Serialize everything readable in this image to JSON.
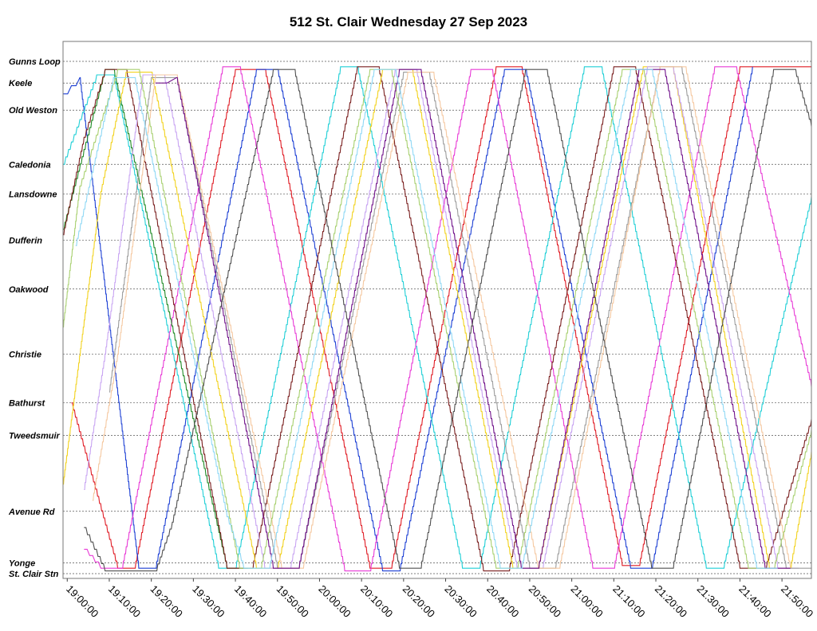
{
  "chart_data": {
    "type": "line",
    "title": "512 St. Clair Wednesday 27 Sep 2023",
    "xlabel": "",
    "ylabel": "",
    "x_range": [
      "18:59:00",
      "21:57:00"
    ],
    "x_ticks": [
      "19:00:00",
      "19:10:00",
      "19:20:00",
      "19:30:00",
      "19:40:00",
      "19:50:00",
      "20:00:00",
      "20:10:00",
      "20:20:00",
      "20:30:00",
      "20:40:00",
      "20:50:00",
      "21:00:00",
      "21:10:00",
      "21:20:00",
      "21:30:00",
      "21:40:00",
      "21:50:00"
    ],
    "stops": [
      {
        "name": "Gunns Loop",
        "dist": 0
      },
      {
        "name": "Keele",
        "dist": 0.4
      },
      {
        "name": "Old Weston",
        "dist": 0.9
      },
      {
        "name": "Caledonia",
        "dist": 1.9
      },
      {
        "name": "Lansdowne",
        "dist": 2.45
      },
      {
        "name": "Dufferin",
        "dist": 3.3
      },
      {
        "name": "Oakwood",
        "dist": 4.2
      },
      {
        "name": "Christie",
        "dist": 5.4
      },
      {
        "name": "Bathurst",
        "dist": 6.3
      },
      {
        "name": "Tweedsmuir",
        "dist": 6.9
      },
      {
        "name": "Avenue Rd",
        "dist": 8.3
      },
      {
        "name": "Yonge",
        "dist": 9.25
      },
      {
        "name": "St. Clair Stn",
        "dist": 9.45
      }
    ],
    "grid": true,
    "series": [
      {
        "color": "#e01b24",
        "points": [
          [
            "19:01:00",
            6.3
          ],
          [
            "19:12:00",
            9.35
          ],
          [
            "19:16:00",
            9.35
          ],
          [
            "19:40:00",
            0.15
          ],
          [
            "19:47:00",
            0.15
          ],
          [
            "20:12:00",
            9.35
          ],
          [
            "20:17:00",
            9.35
          ],
          [
            "20:42:00",
            0.1
          ],
          [
            "20:48:00",
            0.1
          ],
          [
            "21:12:00",
            9.3
          ],
          [
            "21:16:00",
            9.3
          ],
          [
            "21:40:00",
            0.1
          ],
          [
            "21:57:00",
            0.1
          ]
        ]
      },
      {
        "color": "#1c3fd4",
        "points": [
          [
            "18:59:00",
            0.6
          ],
          [
            "19:03:00",
            0.3
          ],
          [
            "19:17:00",
            9.35
          ],
          [
            "19:21:00",
            9.35
          ],
          [
            "19:45:00",
            0.15
          ],
          [
            "19:50:00",
            0.15
          ],
          [
            "20:15:00",
            9.4
          ],
          [
            "20:19:00",
            9.4
          ],
          [
            "20:44:00",
            0.15
          ],
          [
            "20:49:00",
            0.15
          ],
          [
            "21:14:00",
            9.35
          ],
          [
            "21:19:00",
            9.35
          ],
          [
            "21:43:00",
            0.1
          ]
        ]
      },
      {
        "color": "#1fcfd6",
        "points": [
          [
            "18:59:00",
            1.9
          ],
          [
            "19:07:00",
            0.25
          ],
          [
            "19:11:00",
            0.25
          ],
          [
            "19:36:00",
            9.35
          ],
          [
            "19:40:00",
            9.35
          ],
          [
            "20:05:00",
            0.1
          ],
          [
            "20:09:00",
            0.1
          ],
          [
            "20:34:00",
            9.35
          ],
          [
            "20:38:00",
            9.35
          ],
          [
            "21:03:00",
            0.1
          ],
          [
            "21:07:00",
            0.1
          ],
          [
            "21:32:00",
            9.35
          ],
          [
            "21:36:00",
            9.35
          ],
          [
            "21:57:00",
            2.5
          ]
        ]
      },
      {
        "color": "#e83ad6",
        "points": [
          [
            "19:04:00",
            9.0
          ],
          [
            "19:08:00",
            9.35
          ],
          [
            "19:13:00",
            9.35
          ],
          [
            "19:37:00",
            0.1
          ],
          [
            "19:41:00",
            0.1
          ],
          [
            "20:06:00",
            9.4
          ],
          [
            "20:12:00",
            9.4
          ],
          [
            "20:36:00",
            0.15
          ],
          [
            "20:41:00",
            0.15
          ],
          [
            "21:05:00",
            9.35
          ],
          [
            "21:10:00",
            9.35
          ],
          [
            "21:34:00",
            0.1
          ],
          [
            "21:39:00",
            0.1
          ],
          [
            "21:57:00",
            6.0
          ]
        ]
      },
      {
        "color": "#1e8a25",
        "points": [
          [
            "18:59:00",
            3.1
          ],
          [
            "19:09:00",
            0.15
          ],
          [
            "19:11:00",
            0.15
          ],
          [
            "19:38:00",
            9.35
          ],
          [
            "19:43:00",
            9.35
          ]
        ]
      },
      {
        "color": "#7a1f1f",
        "points": [
          [
            "18:59:00",
            3.2
          ],
          [
            "19:04:00",
            1.4
          ],
          [
            "19:09:00",
            0.15
          ],
          [
            "19:14:00",
            0.15
          ],
          [
            "19:38:00",
            9.35
          ],
          [
            "19:44:00",
            9.35
          ],
          [
            "20:09:00",
            0.1
          ],
          [
            "20:14:00",
            0.1
          ],
          [
            "20:39:00",
            9.4
          ],
          [
            "20:45:00",
            9.4
          ],
          [
            "21:10:00",
            0.1
          ],
          [
            "21:15:00",
            0.1
          ],
          [
            "21:40:00",
            9.35
          ],
          [
            "21:46:00",
            9.35
          ],
          [
            "21:57:00",
            6.6
          ]
        ]
      },
      {
        "color": "#f2d21d",
        "points": [
          [
            "18:59:00",
            7.8
          ],
          [
            "19:08:00",
            2.4
          ],
          [
            "19:14:00",
            0.2
          ],
          [
            "19:20:00",
            0.2
          ],
          [
            "19:45:00",
            9.35
          ],
          [
            "19:50:00",
            9.35
          ],
          [
            "20:15:00",
            0.15
          ],
          [
            "20:22:00",
            0.15
          ],
          [
            "20:46:00",
            9.35
          ],
          [
            "20:52:00",
            9.35
          ],
          [
            "21:17:00",
            0.1
          ],
          [
            "21:24:00",
            0.1
          ],
          [
            "21:47:00",
            9.35
          ],
          [
            "21:52:00",
            9.35
          ],
          [
            "21:57:00",
            7.2
          ]
        ]
      },
      {
        "color": "#c8a4f2",
        "points": [
          [
            "19:04:00",
            7.9
          ],
          [
            "19:09:00",
            5.4
          ],
          [
            "19:18:00",
            0.25
          ],
          [
            "19:23:00",
            0.25
          ],
          [
            "19:47:00",
            9.35
          ],
          [
            "19:53:00",
            9.35
          ],
          [
            "20:18:00",
            0.15
          ],
          [
            "20:23:00",
            0.15
          ],
          [
            "20:47:00",
            9.35
          ],
          [
            "20:53:00",
            9.35
          ],
          [
            "21:18:00",
            0.1
          ],
          [
            "21:24:00",
            0.1
          ],
          [
            "21:49:00",
            9.35
          ],
          [
            "21:54:00",
            9.35
          ]
        ]
      },
      {
        "color": "#9c9c9c",
        "points": [
          [
            "19:10:00",
            6.1
          ],
          [
            "19:20:00",
            0.3
          ],
          [
            "19:26:00",
            0.3
          ],
          [
            "19:50:00",
            9.35
          ],
          [
            "19:55:00",
            9.35
          ],
          [
            "20:20:00",
            0.2
          ],
          [
            "20:26:00",
            0.2
          ],
          [
            "20:50:00",
            9.35
          ],
          [
            "20:56:00",
            9.35
          ],
          [
            "21:21:00",
            0.1
          ],
          [
            "21:26:00",
            0.1
          ],
          [
            "21:51:00",
            9.35
          ],
          [
            "21:57:00",
            9.35
          ]
        ]
      },
      {
        "color": "#f5c8a0",
        "points": [
          [
            "19:06:00",
            8.1
          ],
          [
            "19:12:00",
            5.4
          ],
          [
            "19:21:00",
            0.25
          ],
          [
            "19:26:00",
            0.25
          ],
          [
            "19:51:00",
            9.35
          ],
          [
            "19:56:00",
            9.35
          ],
          [
            "20:21:00",
            0.2
          ],
          [
            "20:27:00",
            0.2
          ],
          [
            "20:52:00",
            9.35
          ],
          [
            "20:57:00",
            9.35
          ],
          [
            "21:21:00",
            0.1
          ],
          [
            "21:27:00",
            0.1
          ],
          [
            "21:52:00",
            9.35
          ]
        ]
      },
      {
        "color": "#a8d070",
        "points": [
          [
            "18:59:00",
            4.9
          ],
          [
            "19:03:00",
            2.3
          ],
          [
            "19:12:00",
            0.15
          ],
          [
            "19:17:00",
            0.15
          ],
          [
            "19:41:00",
            9.35
          ],
          [
            "19:46:00",
            9.35
          ],
          [
            "20:12:00",
            0.15
          ],
          [
            "20:17:00",
            0.15
          ],
          [
            "20:42:00",
            9.35
          ],
          [
            "20:47:00",
            9.35
          ],
          [
            "21:12:00",
            0.15
          ],
          [
            "21:17:00",
            0.15
          ],
          [
            "21:42:00",
            9.35
          ],
          [
            "21:48:00",
            9.35
          ],
          [
            "21:57:00",
            6.8
          ]
        ]
      },
      {
        "color": "#70118a",
        "points": [
          [
            "19:21:00",
            0.4
          ],
          [
            "19:26:00",
            0.3
          ],
          [
            "19:49:00",
            9.35
          ],
          [
            "19:55:00",
            9.35
          ],
          [
            "20:19:00",
            0.15
          ],
          [
            "20:24:00",
            0.15
          ],
          [
            "20:48:00",
            9.35
          ],
          [
            "20:52:00",
            9.35
          ],
          [
            "21:16:00",
            0.15
          ],
          [
            "21:22:00",
            0.15
          ],
          [
            "21:46:00",
            9.35
          ],
          [
            "21:52:00",
            9.35
          ]
        ]
      },
      {
        "color": "#8fd8f5",
        "points": [
          [
            "19:02:00",
            3.4
          ],
          [
            "19:11:00",
            0.3
          ],
          [
            "19:16:00",
            0.3
          ],
          [
            "19:38:00",
            8.4
          ],
          [
            "19:42:00",
            9.35
          ],
          [
            "19:48:00",
            9.35
          ],
          [
            "20:13:00",
            0.15
          ],
          [
            "20:18:00",
            0.15
          ],
          [
            "20:43:00",
            9.35
          ],
          [
            "20:48:00",
            9.35
          ],
          [
            "21:14:00",
            0.15
          ],
          [
            "21:19:00",
            0.15
          ],
          [
            "21:44:00",
            9.35
          ],
          [
            "21:49:00",
            9.35
          ]
        ]
      },
      {
        "color": "#505050",
        "points": [
          [
            "19:04:00",
            8.6
          ],
          [
            "19:09:00",
            9.4
          ],
          [
            "19:14:00",
            9.4
          ],
          [
            "19:21:00",
            9.4
          ],
          [
            "19:25:00",
            8.5
          ],
          [
            "19:49:00",
            0.15
          ],
          [
            "19:54:00",
            0.15
          ],
          [
            "20:19:00",
            9.35
          ],
          [
            "20:24:00",
            9.35
          ],
          [
            "20:49:00",
            0.15
          ],
          [
            "20:54:00",
            0.15
          ],
          [
            "21:19:00",
            9.35
          ],
          [
            "21:24:00",
            9.35
          ],
          [
            "21:48:00",
            0.15
          ],
          [
            "21:53:00",
            0.15
          ],
          [
            "21:57:00",
            1.2
          ]
        ]
      }
    ]
  }
}
